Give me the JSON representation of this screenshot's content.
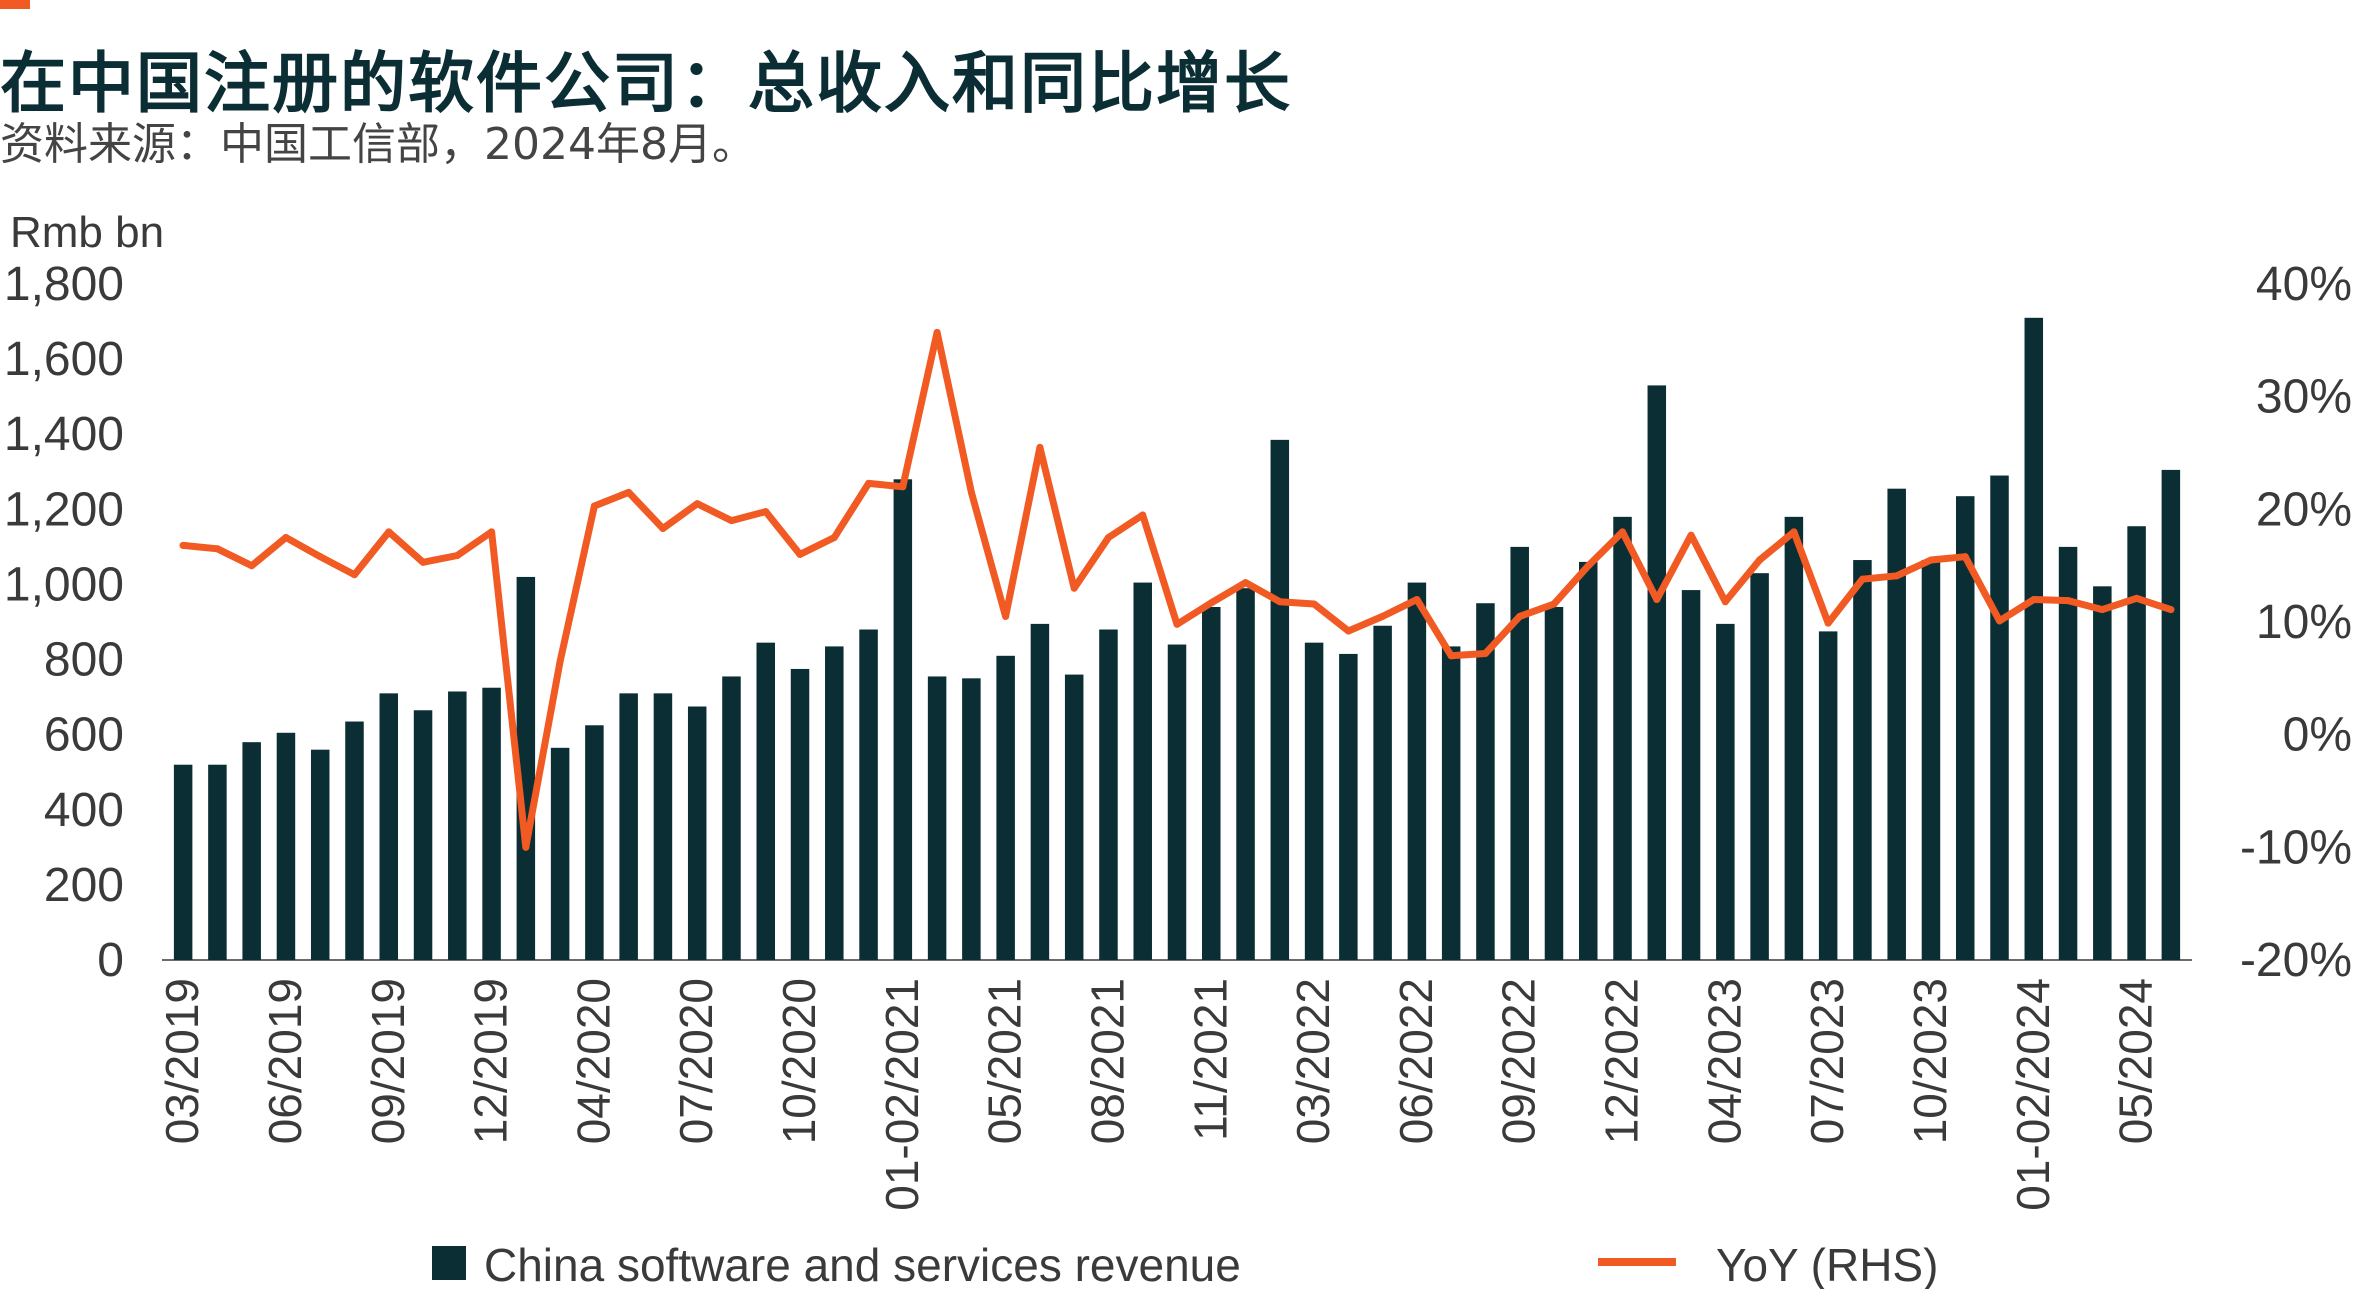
{
  "header": {
    "title": "在中国注册的软件公司：总收入和同比增长",
    "subtitle": "资料来源：中国工信部，2024年8月。"
  },
  "colors": {
    "accent": "#f15a22",
    "bar": "#0b2e35",
    "line": "#f15a22",
    "text": "#3a3a3a"
  },
  "chart_data": {
    "type": "bar",
    "y_unit_label": "Rmb bn",
    "ylim": [
      0,
      1800
    ],
    "y_ticks": [
      "0",
      "200",
      "400",
      "600",
      "800",
      "1,000",
      "1,200",
      "1,400",
      "1,600",
      "1,800"
    ],
    "y2lim": [
      -20,
      40
    ],
    "y2_ticks": [
      "-20%",
      "-10%",
      "0%",
      "10%",
      "20%",
      "30%",
      "40%"
    ],
    "x_tick_labels": [
      "03/2019",
      "06/2019",
      "09/2019",
      "12/2019",
      "04/2020",
      "07/2020",
      "10/2020",
      "01-02/2021",
      "05/2021",
      "08/2021",
      "11/2021",
      "03/2022",
      "06/2022",
      "09/2022",
      "12/2022",
      "04/2023",
      "07/2023",
      "10/2023",
      "01-02/2024",
      "05/2024"
    ],
    "x_tick_positions": [
      0,
      3,
      6,
      9,
      12,
      15,
      18,
      21,
      24,
      27,
      30,
      33,
      36,
      39,
      42,
      45,
      48,
      51,
      54,
      57
    ],
    "legend_position": "bottom",
    "series": [
      {
        "name": "China software and services revenue",
        "type": "bar",
        "axis": "left",
        "values": [
          520,
          520,
          580,
          605,
          560,
          635,
          710,
          665,
          715,
          725,
          1020,
          565,
          625,
          710,
          710,
          675,
          755,
          845,
          775,
          835,
          880,
          1280,
          755,
          750,
          810,
          895,
          760,
          880,
          1005,
          840,
          940,
          990,
          1385,
          845,
          815,
          890,
          1005,
          835,
          950,
          1100,
          940,
          1060,
          1180,
          1530,
          985,
          895,
          1030,
          1180,
          875,
          1065,
          1255,
          1065,
          1235,
          1290,
          1710,
          1100,
          995,
          1155,
          1305
        ]
      },
      {
        "name": "YoY (RHS)",
        "type": "line",
        "axis": "right",
        "values": [
          16.8,
          16.5,
          15.0,
          17.5,
          15.8,
          14.2,
          18.0,
          15.3,
          15.9,
          18.0,
          -10.0,
          6.5,
          20.3,
          21.5,
          18.3,
          20.5,
          19.0,
          19.8,
          16.0,
          17.5,
          22.3,
          22.0,
          35.7,
          21.5,
          10.5,
          25.5,
          13.0,
          17.5,
          19.5,
          9.8,
          11.7,
          13.5,
          11.8,
          11.6,
          9.2,
          10.5,
          12.0,
          7.0,
          7.2,
          10.5,
          11.6,
          15.0,
          18.0,
          12.0,
          17.7,
          11.8,
          15.5,
          18.0,
          9.9,
          13.8,
          14.1,
          15.5,
          15.8,
          10.1,
          12.0,
          11.9,
          11.1,
          12.1,
          11.1
        ]
      }
    ]
  }
}
